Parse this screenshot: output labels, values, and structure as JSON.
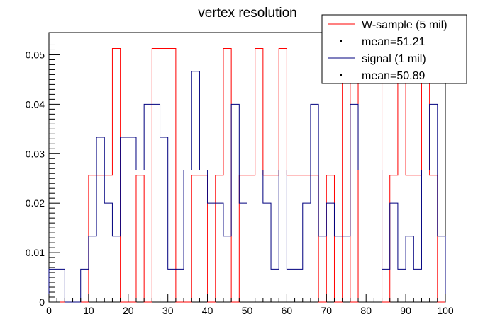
{
  "chart_data": {
    "type": "line",
    "title": "vertex resolution",
    "xlabel": "",
    "ylabel": "",
    "xlim": [
      0,
      100
    ],
    "ylim": [
      0,
      0.0545
    ],
    "grid": false,
    "legend_position": "top-right",
    "x_ticks": [
      "0",
      "10",
      "20",
      "30",
      "40",
      "50",
      "60",
      "70",
      "80",
      "90",
      "100"
    ],
    "y_ticks": [
      "0",
      "0.01",
      "0.02",
      "0.03",
      "0.04",
      "0.05"
    ],
    "bin_edges": [
      0,
      2,
      4,
      6,
      8,
      10,
      12,
      14,
      16,
      18,
      20,
      22,
      24,
      26,
      28,
      30,
      32,
      34,
      36,
      38,
      40,
      42,
      44,
      46,
      48,
      50,
      52,
      54,
      56,
      58,
      60,
      62,
      64,
      66,
      68,
      70,
      72,
      74,
      76,
      78,
      80,
      82,
      84,
      86,
      88,
      90,
      92,
      94,
      96,
      98,
      100
    ],
    "series": [
      {
        "name": "W-sample (5 mil)",
        "color": "#ff0000",
        "values": [
          0,
          0,
          0,
          0,
          0,
          0.02564,
          0.02564,
          0.02564,
          0.05128,
          0,
          0,
          0.02564,
          0,
          0.05128,
          0.05128,
          0.05128,
          0,
          0,
          0.02564,
          0.02564,
          0,
          0.02564,
          0.05128,
          0,
          0.02564,
          0.02564,
          0.05128,
          0.02564,
          0.02564,
          0.05128,
          0.02564,
          0.02564,
          0.02564,
          0.02564,
          0,
          0.02564,
          0,
          0.05128,
          0,
          0.05128,
          0.05128,
          0.05128,
          0,
          0.02564,
          0.05128,
          0.02564,
          0.02564,
          0.05128,
          0.02564,
          0
        ]
      },
      {
        "name": "signal (1 mil)",
        "color": "#00007f",
        "values": [
          0.00667,
          0.00667,
          0,
          0,
          0.00667,
          0.01333,
          0.03333,
          0.02,
          0.01333,
          0.03333,
          0.03333,
          0.02667,
          0.04,
          0.04,
          0.03333,
          0.00667,
          0.00667,
          0.02667,
          0.04667,
          0.02667,
          0.02,
          0.02,
          0.01333,
          0.04,
          0.02,
          0.02667,
          0.02667,
          0.02,
          0.00667,
          0.02667,
          0.00667,
          0.00667,
          0.02,
          0.04,
          0.01333,
          0.02,
          0.01333,
          0.01333,
          0.04,
          0.02667,
          0.02667,
          0.02667,
          0.00667,
          0.02,
          0.00667,
          0.01333,
          0.00667,
          0.02667,
          0.04,
          0.01333
        ]
      }
    ],
    "legend": [
      {
        "label": "W-sample (5 mil)",
        "kind": "line",
        "color": "#ff0000"
      },
      {
        "label": "mean=51.21",
        "kind": "marker",
        "color": "#000000"
      },
      {
        "label": "signal (1 mil)",
        "kind": "line",
        "color": "#00007f"
      },
      {
        "label": "mean=50.89",
        "kind": "marker",
        "color": "#000000"
      }
    ]
  }
}
